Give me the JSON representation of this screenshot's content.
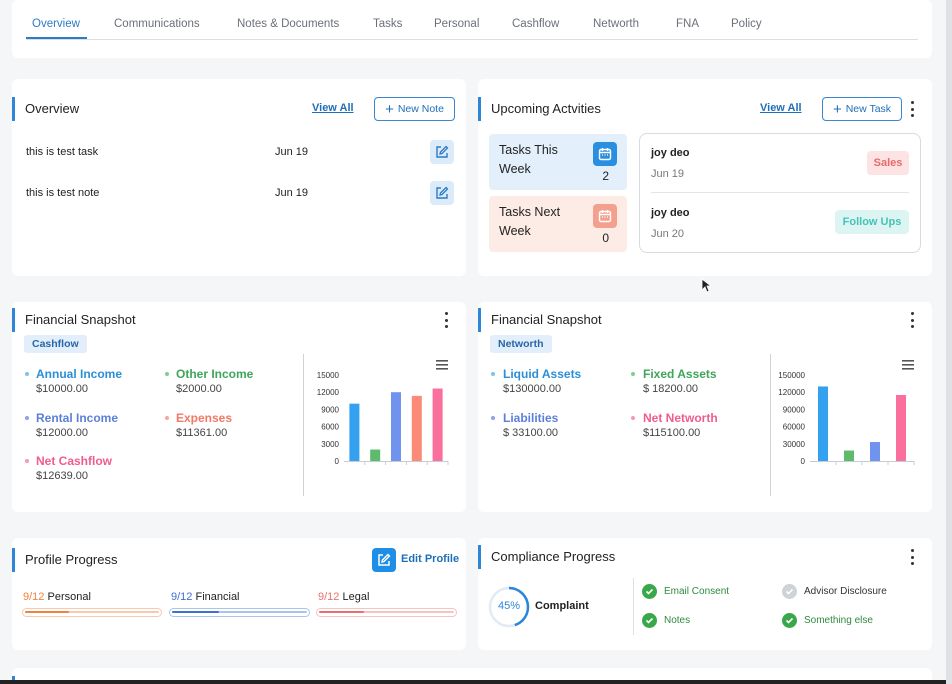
{
  "tabs": [
    "Overview",
    "Communications",
    "Notes & Documents",
    "Tasks",
    "Personal",
    "Cashflow",
    "Networth",
    "FNA",
    "Policy"
  ],
  "overview": {
    "title": "Overview",
    "view_all": "View All",
    "new_note": "New Note",
    "rows": [
      {
        "text": "this is test task",
        "date": "Jun 19"
      },
      {
        "text": "this is test note",
        "date": "Jun 19"
      }
    ]
  },
  "upcoming": {
    "title": "Upcoming Actvities",
    "view_all": "View All",
    "new_task": "New Task",
    "this_week_label": "Tasks This Week",
    "this_week_count": "2",
    "next_week_label": "Tasks Next Week",
    "next_week_count": "0",
    "activities": [
      {
        "name": "joy deo",
        "date": "Jun 19",
        "tag": "Sales"
      },
      {
        "name": "joy deo",
        "date": "Jun 20",
        "tag": "Follow Ups"
      }
    ]
  },
  "cashflow_snapshot": {
    "title": "Financial Snapshot",
    "chip": "Cashflow",
    "items": [
      {
        "label": "Annual Income",
        "value": "$10000.00",
        "color": "#2a8fd8"
      },
      {
        "label": "Other Income",
        "value": "$2000.00",
        "color": "#3ea55a"
      },
      {
        "label": "Rental Income",
        "value": "$12000.00",
        "color": "#5b7fd8"
      },
      {
        "label": "Expenses",
        "value": "$11361.00",
        "color": "#f07a66"
      },
      {
        "label": "Net Cashflow",
        "value": "$12639.00",
        "color": "#ef5d8c"
      }
    ]
  },
  "networth_snapshot": {
    "title": "Financial Snapshot",
    "chip": "Networth",
    "items": [
      {
        "label": "Liquid Assets",
        "value": "$130000.00",
        "color": "#2a8fd8"
      },
      {
        "label": "Fixed Assets",
        "value": "$ 18200.00",
        "color": "#3ea55a"
      },
      {
        "label": "Liabilities",
        "value": "$ 33100.00",
        "color": "#5b7fd8"
      },
      {
        "label": "Net Networth",
        "value": "$115100.00",
        "color": "#ef5d8c"
      }
    ]
  },
  "chart_data": [
    {
      "type": "bar",
      "categories": [
        "Annual Income",
        "Other Income",
        "Rental Income",
        "Expenses",
        "Net Cashflow"
      ],
      "values": [
        10000,
        2000,
        12000,
        11361,
        12639
      ],
      "colors": [
        "#33a1f0",
        "#5dbb6b",
        "#6f93ee",
        "#fb8a78",
        "#fa6f9c"
      ],
      "ylim": [
        0,
        15000
      ],
      "yticks": [
        "0",
        "3000",
        "6000",
        "9000",
        "12000",
        "15000"
      ],
      "grid": false
    },
    {
      "type": "bar",
      "categories": [
        "Liquid Assets",
        "Fixed Assets",
        "Liabilities",
        "Net Networth"
      ],
      "values": [
        130000,
        18200,
        33100,
        115100
      ],
      "colors": [
        "#33a1f0",
        "#5dbb6b",
        "#6f93ee",
        "#fa6f9c"
      ],
      "ylim": [
        0,
        150000
      ],
      "yticks": [
        "0",
        "30000",
        "60000",
        "90000",
        "120000",
        "150000"
      ],
      "grid": false
    }
  ],
  "profile": {
    "title": "Profile Progress",
    "edit": "Edit Profile",
    "items": [
      {
        "count": "9/12",
        "label": "Personal",
        "pct": 0.33,
        "color": "#f0823d",
        "track": "#f8c9ae"
      },
      {
        "count": "9/12",
        "label": "Financial",
        "pct": 0.35,
        "color": "#3f6fd0",
        "track": "#a9c4ee"
      },
      {
        "count": "9/12",
        "label": "Legal",
        "pct": 0.33,
        "color": "#ec6f6f",
        "track": "#f6c3c3"
      }
    ]
  },
  "compliance": {
    "title": "Compliance Progress",
    "percent": "45%",
    "label": "Complaint",
    "pct": 0.45,
    "items": [
      {
        "label": "Email Consent",
        "done": true
      },
      {
        "label": "Advisor Disclosure",
        "done": false
      },
      {
        "label": "Notes",
        "done": true
      },
      {
        "label": "Something else",
        "done": true
      }
    ]
  }
}
